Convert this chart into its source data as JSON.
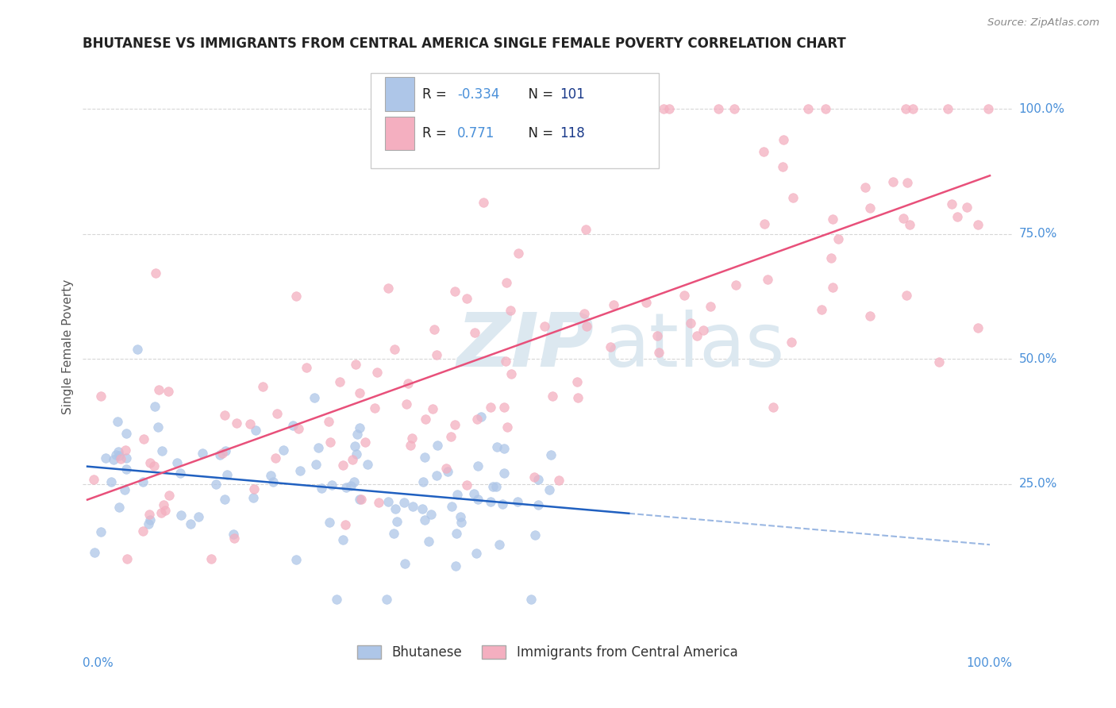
{
  "title": "BHUTANESE VS IMMIGRANTS FROM CENTRAL AMERICA SINGLE FEMALE POVERTY CORRELATION CHART",
  "source": "Source: ZipAtlas.com",
  "ylabel": "Single Female Poverty",
  "legend_label1": "Bhutanese",
  "legend_label2": "Immigrants from Central America",
  "r1": -0.334,
  "n1": 101,
  "r2": 0.771,
  "n2": 118,
  "color1": "#aec6e8",
  "color2": "#f4afc0",
  "line_color1": "#2060c0",
  "line_color2": "#e8507a",
  "watermark_zip": "ZIP",
  "watermark_atlas": "atlas",
  "watermark_color": "#dce8f0",
  "bg_color": "#ffffff",
  "grid_color": "#cccccc",
  "title_color": "#222222",
  "axis_label_color": "#4a90d9",
  "legend_text_color": "#222222",
  "legend_rval_color": "#4a90d9",
  "legend_nval_color": "#1a3a8a",
  "ytick_labels": [
    "25.0%",
    "50.0%",
    "75.0%",
    "100.0%"
  ],
  "ytick_positions": [
    0.25,
    0.5,
    0.75,
    1.0
  ]
}
